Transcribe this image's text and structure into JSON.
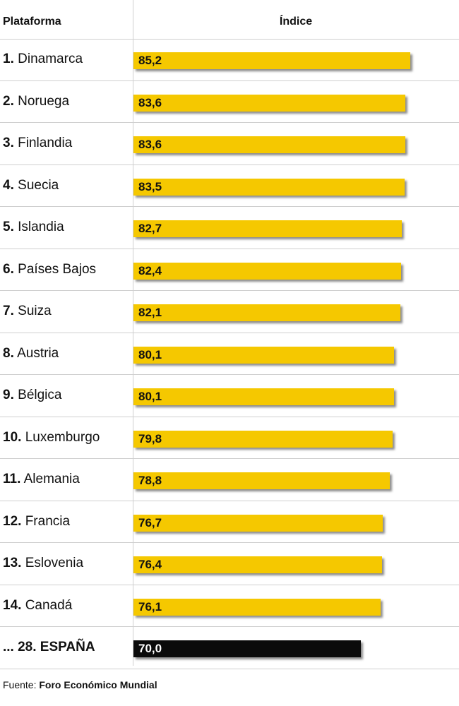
{
  "header": {
    "col_left": "Plataforma",
    "col_right": "Índice"
  },
  "footer": {
    "prefix": "Fuente:",
    "source": "Foro Económico Mundial"
  },
  "colors": {
    "bar": "#f5c800",
    "highlight": "#0b0b0b"
  },
  "chart_data": {
    "type": "bar",
    "orientation": "horizontal",
    "title": "",
    "xlabel": "Índice",
    "ylabel": "Plataforma",
    "ranks": [
      "1.",
      "2.",
      "3.",
      "4.",
      "5.",
      "6.",
      "7.",
      "8.",
      "9.",
      "10.",
      "11.",
      "12.",
      "13.",
      "14.",
      "... 28. ESPAÑA"
    ],
    "categories": [
      "Dinamarca",
      "Noruega",
      "Finlandia",
      "Suecia",
      "Islandia",
      "Países Bajos",
      "Suiza",
      "Austria",
      "Bélgica",
      "Luxemburgo",
      "Alemania",
      "Francia",
      "Eslovenia",
      "Canadá",
      ""
    ],
    "values": [
      85.2,
      83.6,
      83.6,
      83.5,
      82.7,
      82.4,
      82.1,
      80.1,
      80.1,
      79.8,
      78.8,
      76.7,
      76.4,
      76.1,
      70.0
    ],
    "value_labels": [
      "85,2",
      "83,6",
      "83,6",
      "83,5",
      "82,7",
      "82,4",
      "82,1",
      "80,1",
      "80,1",
      "79,8",
      "78,8",
      "76,7",
      "76,4",
      "76,1",
      "70,0"
    ],
    "highlight_index": 14,
    "grid": false,
    "legend": "none"
  }
}
